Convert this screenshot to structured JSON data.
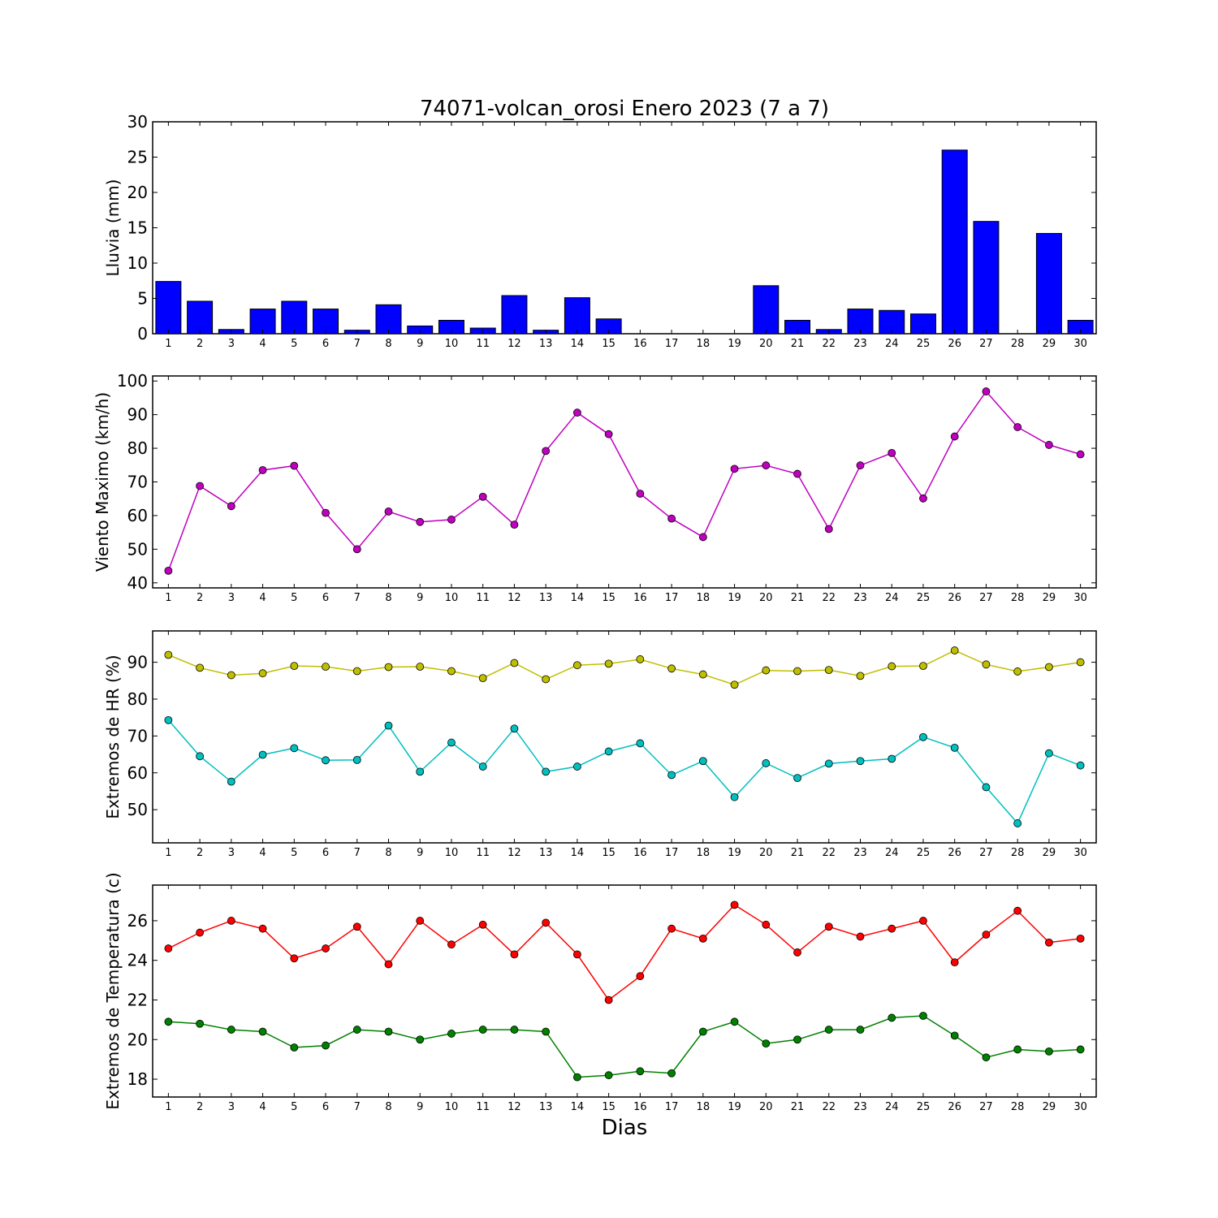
{
  "chart_data": [
    {
      "type": "bar",
      "title": "74071-volcan_orosi Enero 2023  (7 a 7)",
      "ylabel": "Lluvia (mm)",
      "xlabel": "",
      "categories": [
        "1",
        "2",
        "3",
        "4",
        "5",
        "6",
        "7",
        "8",
        "9",
        "10",
        "11",
        "12",
        "13",
        "14",
        "15",
        "16",
        "17",
        "18",
        "19",
        "20",
        "21",
        "22",
        "23",
        "24",
        "25",
        "26",
        "27",
        "28",
        "29",
        "30"
      ],
      "values": [
        7.4,
        4.6,
        0.6,
        3.5,
        4.6,
        3.5,
        0.5,
        4.1,
        1.1,
        1.9,
        0.8,
        5.4,
        0.5,
        5.1,
        2.1,
        0,
        0,
        0,
        0,
        6.8,
        1.9,
        0.6,
        3.5,
        3.3,
        2.8,
        26.0,
        15.9,
        0,
        14.2,
        1.9
      ],
      "ylim": [
        0,
        30
      ],
      "yticks": [
        0,
        5,
        10,
        15,
        20,
        25,
        30
      ],
      "colors": [
        "#0000ff"
      ]
    },
    {
      "type": "line",
      "ylabel": "Viento Maximo (km/h)",
      "xlabel": "",
      "categories": [
        "1",
        "2",
        "3",
        "4",
        "5",
        "6",
        "7",
        "8",
        "9",
        "10",
        "11",
        "12",
        "13",
        "14",
        "15",
        "16",
        "17",
        "18",
        "19",
        "20",
        "21",
        "22",
        "23",
        "24",
        "25",
        "26",
        "27",
        "28",
        "29",
        "30"
      ],
      "series": [
        {
          "values": [
            43.6,
            68.8,
            62.8,
            73.5,
            74.8,
            60.8,
            50.0,
            61.2,
            58.1,
            58.8,
            65.6,
            57.3,
            79.2,
            90.6,
            84.2,
            66.5,
            59.1,
            53.6,
            73.9,
            74.9,
            72.4,
            56.0,
            74.9,
            78.6,
            65.1,
            83.5,
            96.9,
            86.3,
            81.0,
            78.2
          ]
        }
      ],
      "ylim": [
        38.5,
        101.5
      ],
      "yticks": [
        40,
        50,
        60,
        70,
        80,
        90,
        100
      ],
      "colors": [
        "#bf00bf"
      ]
    },
    {
      "type": "line",
      "ylabel": "Extremos de HR (%)",
      "xlabel": "",
      "categories": [
        "1",
        "2",
        "3",
        "4",
        "5",
        "6",
        "7",
        "8",
        "9",
        "10",
        "11",
        "12",
        "13",
        "14",
        "15",
        "16",
        "17",
        "18",
        "19",
        "20",
        "21",
        "22",
        "23",
        "24",
        "25",
        "26",
        "27",
        "28",
        "29",
        "30"
      ],
      "series": [
        {
          "values": [
            92.0,
            88.5,
            86.5,
            87.0,
            89.0,
            88.8,
            87.6,
            88.7,
            88.8,
            87.6,
            85.7,
            89.8,
            85.4,
            89.2,
            89.6,
            90.8,
            88.3,
            86.7,
            83.9,
            87.8,
            87.6,
            87.9,
            86.3,
            88.9,
            89.0,
            93.2,
            89.4,
            87.5,
            88.7,
            90.0
          ]
        },
        {
          "values": [
            74.3,
            64.5,
            57.6,
            64.9,
            66.7,
            63.4,
            63.5,
            72.8,
            60.3,
            68.2,
            61.7,
            72.0,
            60.3,
            61.7,
            65.8,
            68.0,
            59.4,
            63.2,
            53.4,
            62.6,
            58.6,
            62.5,
            63.2,
            63.8,
            69.7,
            66.8,
            56.1,
            46.3,
            65.3,
            62.0
          ]
        }
      ],
      "ylim": [
        41,
        98.5
      ],
      "yticks": [
        50,
        60,
        70,
        80,
        90
      ],
      "colors": [
        "#bfbf00",
        "#00bfbf"
      ]
    },
    {
      "type": "line",
      "ylabel": "Extremos de Temperatura (c)",
      "xlabel": "Dias",
      "categories": [
        "1",
        "2",
        "3",
        "4",
        "5",
        "6",
        "7",
        "8",
        "9",
        "10",
        "11",
        "12",
        "13",
        "14",
        "15",
        "16",
        "17",
        "18",
        "19",
        "20",
        "21",
        "22",
        "23",
        "24",
        "25",
        "26",
        "27",
        "28",
        "29",
        "30"
      ],
      "series": [
        {
          "values": [
            24.6,
            25.4,
            26.0,
            25.6,
            24.1,
            24.6,
            25.7,
            23.8,
            26.0,
            24.8,
            25.8,
            24.3,
            25.9,
            24.3,
            22.0,
            23.2,
            25.6,
            25.1,
            26.8,
            25.8,
            24.4,
            25.7,
            25.2,
            25.6,
            26.0,
            23.9,
            25.3,
            26.5,
            24.9,
            25.1
          ]
        },
        {
          "values": [
            20.9,
            20.8,
            20.5,
            20.4,
            19.6,
            19.7,
            20.5,
            20.4,
            20.0,
            20.3,
            20.5,
            20.5,
            20.4,
            18.1,
            18.2,
            18.4,
            18.3,
            20.4,
            20.9,
            19.8,
            20.0,
            20.5,
            20.5,
            21.1,
            21.2,
            20.2,
            19.1,
            19.5,
            19.4,
            19.5
          ]
        }
      ],
      "ylim": [
        17.1,
        27.8
      ],
      "yticks": [
        18,
        20,
        22,
        24,
        26
      ],
      "colors": [
        "#ff0000",
        "#008000"
      ]
    }
  ]
}
